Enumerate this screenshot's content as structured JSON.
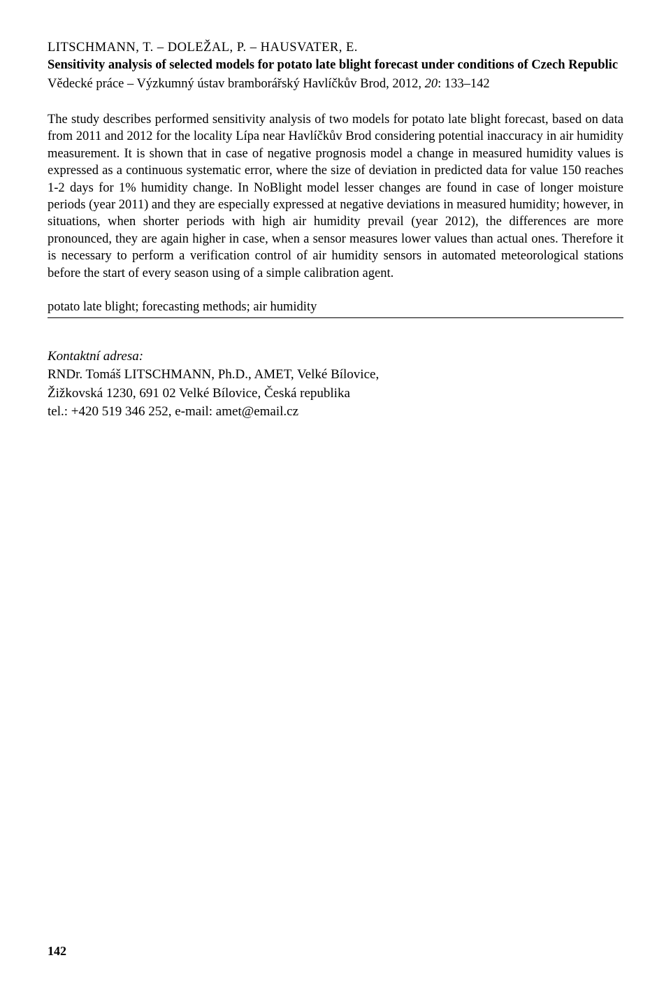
{
  "authors": "LITSCHMANN, T. – DOLEŽAL, P. – HAUSVATER, E.",
  "title": "Sensitivity analysis of selected models for potato late blight forecast under conditions of Czech Republic",
  "citation_prefix": "Vědecké práce – Výzkumný ústav bramborářský Havlíčkův Brod, 2012, ",
  "citation_volume": "20",
  "citation_pages": ": 133–142",
  "abstract": "The study describes performed sensitivity analysis of two models for potato late blight forecast, based on data from 2011 and 2012 for the locality Lípa near Havlíčkův Brod considering potential inaccuracy in air humidity measurement. It is shown that in case of negative prognosis model a change in measured humidity values is expressed as a continuous systematic error, where the size of deviation in predicted data for value 150 reaches 1-2 days for 1% humidity change. In NoBlight model lesser changes are found in case of longer moisture periods (year 2011) and they are especially expressed at negative deviations in measured humidity; however, in situations, when shorter periods with high air humidity prevail (year 2012), the differences are more pronounced, they are again higher in case, when a sensor measures lower values than actual ones. Therefore it is necessary to perform a verification control of air humidity sensors in automated meteorological stations before the start of every season using of a simple calibration agent.",
  "keywords": "potato late blight; forecasting methods; air humidity",
  "contact_label": "Kontaktní adresa:",
  "contact_name": "RNDr. Tomáš LITSCHMANN, Ph.D., AMET, Velké Bílovice,",
  "contact_address": "Žižkovská 1230, 691 02 Velké Bílovice, Česká republika",
  "contact_phone_email": "tel.: +420 519 346 252, e-mail: amet@email.cz",
  "page_number": "142"
}
